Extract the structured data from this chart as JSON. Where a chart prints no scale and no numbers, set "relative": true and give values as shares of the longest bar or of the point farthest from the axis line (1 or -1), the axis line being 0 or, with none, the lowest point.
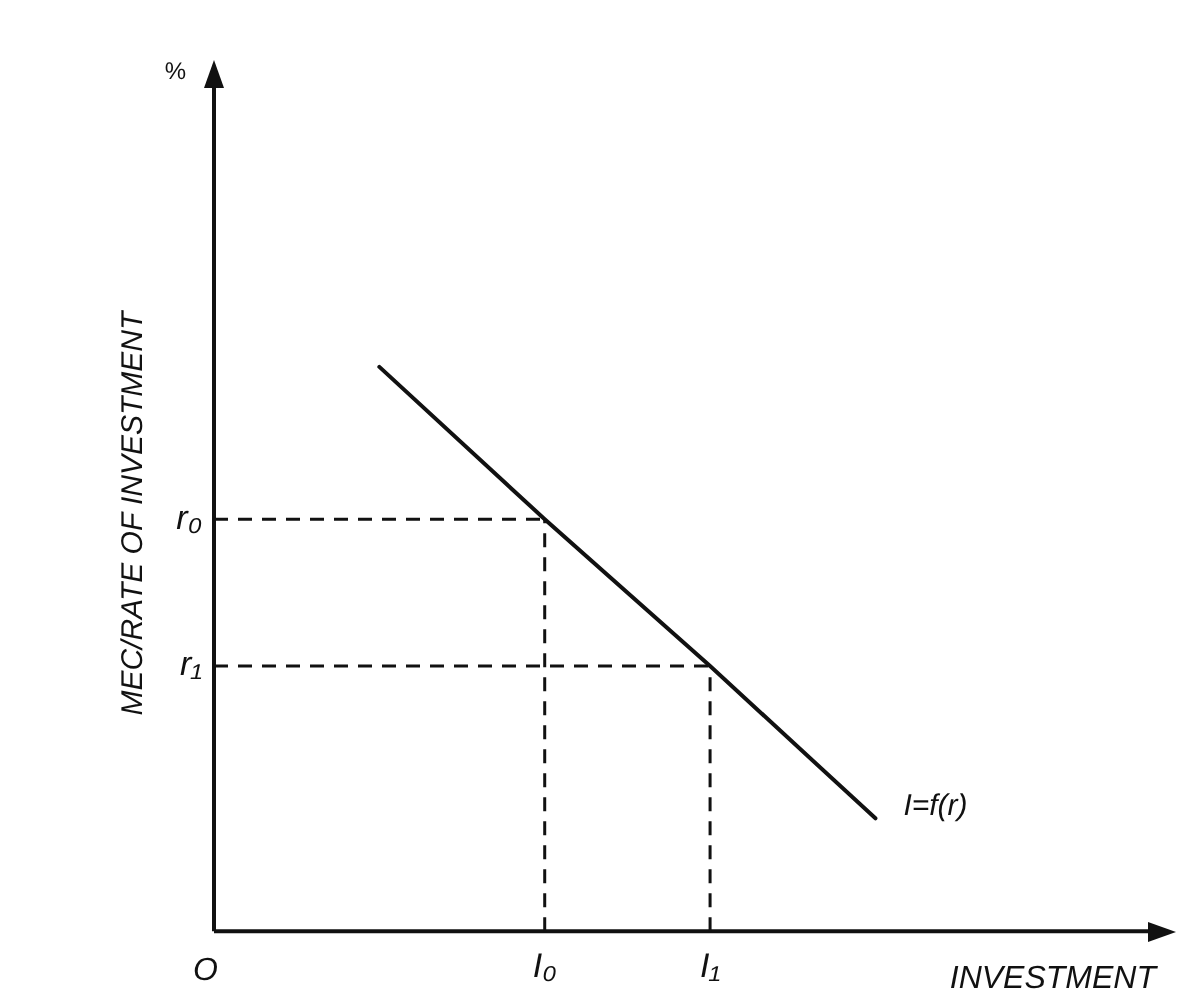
{
  "chart_data": {
    "type": "line",
    "relative": true,
    "ylabel": "MEC/RATE OF INVESTMENT",
    "xlabel": "INVESTMENT",
    "categories": [
      null,
      "I₀",
      "I₁",
      null
    ],
    "series": [
      {
        "name": "I=f(r)",
        "color": "#111111",
        "values": [
          1,
          0.73,
          0.47,
          0.2
        ]
      }
    ],
    "ref_lines": [
      {
        "axis": "y",
        "value": 0.73,
        "label": "r₀",
        "line_style": "dashed"
      },
      {
        "axis": "y",
        "value": 0.47,
        "label": "r₁",
        "line_style": "dashed"
      },
      {
        "axis": "x",
        "value": "I₀",
        "line_style": "dashed"
      },
      {
        "axis": "x",
        "value": "I₁",
        "line_style": "dashed"
      }
    ],
    "annotations": [
      "%",
      "O"
    ],
    "marker": "none",
    "grid": false,
    "legend": false
  }
}
